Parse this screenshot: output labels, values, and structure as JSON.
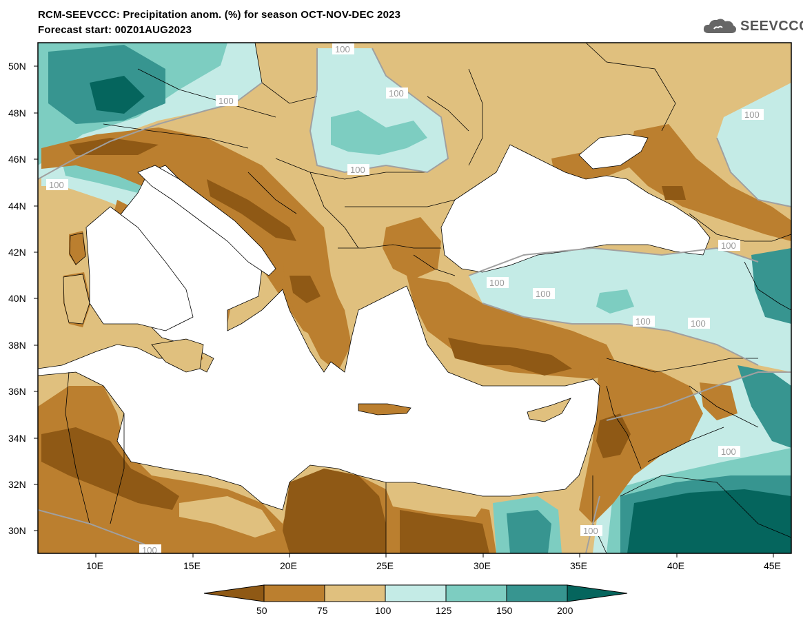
{
  "title": {
    "line1": "RCM-SEEVCCC: Precipitation anom. (%) for season OCT-NOV-DEC 2023",
    "line2": "Forecast start: 00Z01AUG2023"
  },
  "logo": {
    "text": "SEEVCCC",
    "icon": "cloud-icon"
  },
  "map": {
    "lat_ticks": [
      "50N",
      "48N",
      "46N",
      "44N",
      "42N",
      "40N",
      "38N",
      "36N",
      "34N",
      "32N",
      "30N"
    ],
    "lon_ticks": [
      "10E",
      "15E",
      "20E",
      "25E",
      "30E",
      "35E",
      "40E",
      "45E"
    ],
    "contour_labels": [
      "100",
      "100",
      "100",
      "100",
      "100",
      "100",
      "100",
      "100",
      "100",
      "100",
      "100",
      "100",
      "100",
      "100"
    ]
  },
  "legend": {
    "labels": [
      "50",
      "75",
      "100",
      "125",
      "150",
      "200"
    ],
    "colors": [
      "#8f5915",
      "#bb7f2f",
      "#e0c07e",
      "#c4ebe6",
      "#7dcdc1",
      "#379590",
      "#05655d"
    ]
  },
  "colors": {
    "water": "#ffffff",
    "land_base": "#e0c07e",
    "very_dry": "#8f5915",
    "dry": "#bb7f2f",
    "wet": "#c4ebe6",
    "wetter": "#7dcdc1",
    "very_wet": "#379590",
    "extreme_wet": "#05655d"
  }
}
